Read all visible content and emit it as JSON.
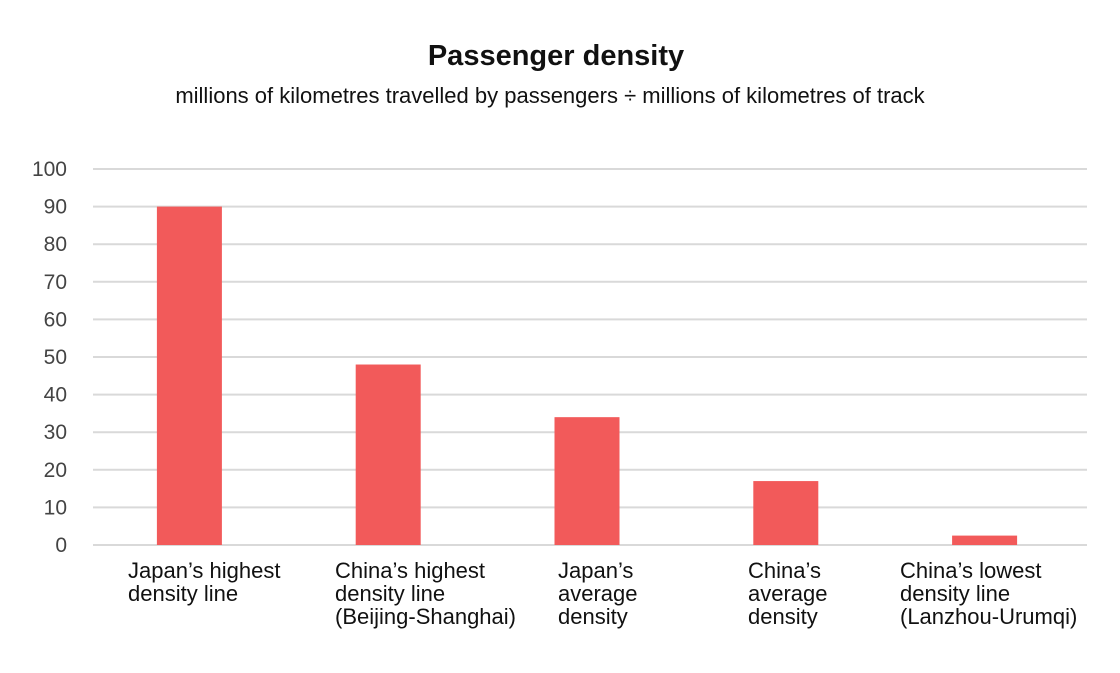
{
  "chart_data": {
    "type": "bar",
    "title": "Passenger density",
    "subtitle": "millions of kilometres travelled by passengers ÷ millions of kilometres of track",
    "categories": [
      [
        "Japan’s highest",
        "density line"
      ],
      [
        "China’s highest",
        "density line",
        "(Beijing-Shanghai)"
      ],
      [
        "Japan’s",
        "average",
        "density"
      ],
      [
        "China’s",
        "average",
        "density"
      ],
      [
        "China’s lowest",
        "density line",
        "(Lanzhou-Urumqi)"
      ]
    ],
    "values": [
      90,
      48,
      34,
      17,
      2.5
    ],
    "ylim": [
      0,
      100
    ],
    "yticks": [
      0,
      10,
      20,
      30,
      40,
      50,
      60,
      70,
      80,
      90,
      100
    ],
    "grid": true,
    "bar_color": "#f25a5a",
    "grid_color": "#d9d9d9"
  }
}
